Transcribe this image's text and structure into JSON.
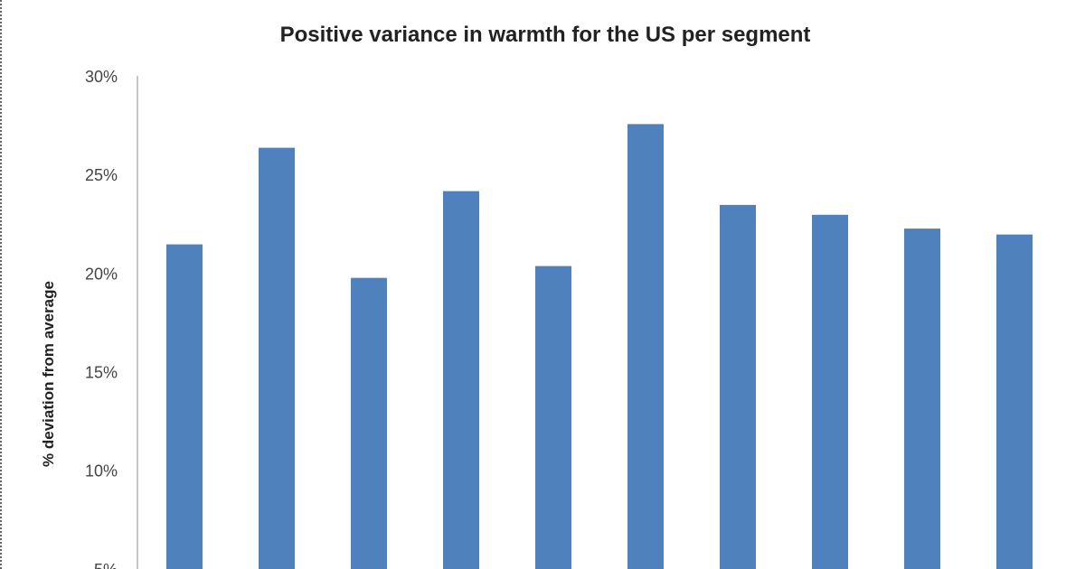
{
  "chart_data": {
    "type": "bar",
    "title": "Positive variance in warmth for the US  per segment",
    "ylabel": "% deviation from average",
    "xlabel": "",
    "ylim": [
      0.05,
      0.3
    ],
    "y_ticks": [
      "5%",
      "10%",
      "15%",
      "20%",
      "25%",
      "30%"
    ],
    "y_tick_values": [
      0.05,
      0.1,
      0.15,
      0.2,
      0.25,
      0.3
    ],
    "grid": false,
    "values": [
      0.215,
      0.264,
      0.198,
      0.242,
      0.204,
      0.276,
      0.235,
      0.23,
      0.223,
      0.22
    ],
    "bar_color": "#4f81bd"
  }
}
